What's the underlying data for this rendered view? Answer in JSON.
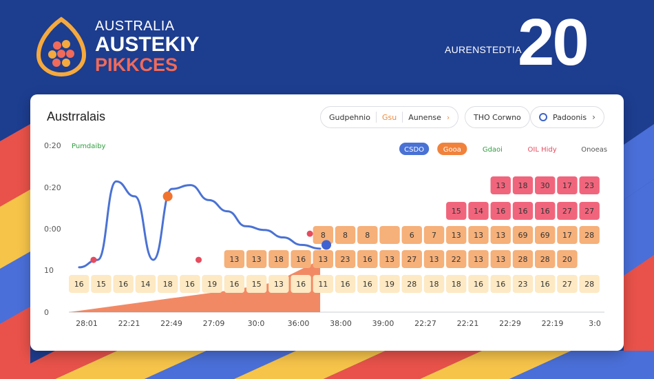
{
  "brand": {
    "line1": "AUSTRALIA",
    "line2": "AUSTEKIY",
    "line3": "PIKKCES"
  },
  "header": {
    "label": "AURENSTEDTIA",
    "number": "20"
  },
  "card": {
    "title": "Austrralais",
    "controls": {
      "group1_left": "Gudpehnio",
      "group1_mid": "Gsu",
      "group1_right": "Aunense",
      "group2": "THO Corwno",
      "group3": "Padoonis"
    }
  },
  "colors": {
    "background": "#1d3d8f",
    "stripe_red": "#e8524a",
    "stripe_yellow": "#f6c449",
    "stripe_blue": "#4a6fd8",
    "line": "#4a72d4",
    "marker_orange": "#f0742f",
    "marker_red": "#e64b5e",
    "marker_blue": "#3f62d2",
    "cell_light": "#fde9c3",
    "cell_orange": "#f6b079",
    "cell_pink": "#f1657c",
    "area": "#f0744a"
  },
  "chart_data": {
    "type": "heatmap",
    "y_ticks": [
      "0",
      "10",
      "0:00",
      "0:20",
      "0:20"
    ],
    "x_labels": [
      "28:01",
      "22:21",
      "22:49",
      "27:09",
      "30:0",
      "36:00",
      "38:00",
      "39:00",
      "22:27",
      "22:21",
      "22:29",
      "22:19",
      "3:0"
    ],
    "legend": [
      {
        "label": "CSDO",
        "color": "#4a72d4",
        "style": "pill"
      },
      {
        "label": "Gooa",
        "color": "#f0823c",
        "style": "pill"
      },
      {
        "label": "Gdaoi",
        "color": "#2f9e3f",
        "style": "text"
      },
      {
        "label": "OIL Hidy",
        "color": "#e64b5e",
        "style": "text"
      },
      {
        "label": "Onoeas",
        "color": "#555555",
        "style": "text"
      }
    ],
    "line_annotation": "Pumdaiby",
    "rows": [
      {
        "style": "light",
        "start_col": 0,
        "values": [
          "16",
          "15",
          "16",
          "14",
          "18",
          "16",
          "19",
          "16",
          "15",
          "13",
          "16",
          "11",
          "16",
          "16",
          "19",
          "28",
          "18",
          "18",
          "16",
          "16",
          "23",
          "16",
          "27",
          "28"
        ]
      },
      {
        "style": "orange",
        "start_col": 7,
        "values": [
          "13",
          "13",
          "18",
          "16",
          "13",
          "23",
          "16",
          "13",
          "27",
          "13",
          "22",
          "13",
          "13",
          "28",
          "28",
          "20"
        ]
      },
      {
        "style": "orange",
        "start_col": 11,
        "values": [
          "8",
          "8",
          "8",
          "",
          "6",
          "7",
          "13",
          "13",
          "13",
          "69",
          "69",
          "17",
          "28"
        ]
      },
      {
        "style": "pink",
        "start_col": 17,
        "values": [
          "15",
          "14",
          "16",
          "16",
          "16",
          "27",
          "27"
        ]
      },
      {
        "style": "pink",
        "start_col": 19,
        "values": [
          "13",
          "18",
          "30",
          "17",
          "23"
        ]
      }
    ],
    "line_series": {
      "name": "",
      "x": [
        0,
        1,
        2,
        3,
        4,
        5,
        6,
        7,
        8,
        9,
        10,
        11,
        12,
        13
      ],
      "y": [
        12,
        14,
        35,
        31,
        14,
        33,
        34,
        30,
        27,
        23,
        22,
        20,
        18,
        17
      ]
    },
    "markers": [
      {
        "x": 1.2,
        "y": 14,
        "color": "red"
      },
      {
        "x": 4.8,
        "y": 31,
        "color": "orange"
      },
      {
        "x": 6.3,
        "y": 14,
        "color": "red"
      },
      {
        "x": 11.7,
        "y": 21,
        "color": "red"
      },
      {
        "x": 12.5,
        "y": 18,
        "color": "blue"
      }
    ],
    "area_series": {
      "x": [
        0,
        4,
        8,
        10,
        12.2
      ],
      "y": [
        0,
        3,
        6,
        8,
        14
      ]
    },
    "ylim": [
      0,
      45
    ],
    "xlim": [
      0,
      26
    ]
  }
}
